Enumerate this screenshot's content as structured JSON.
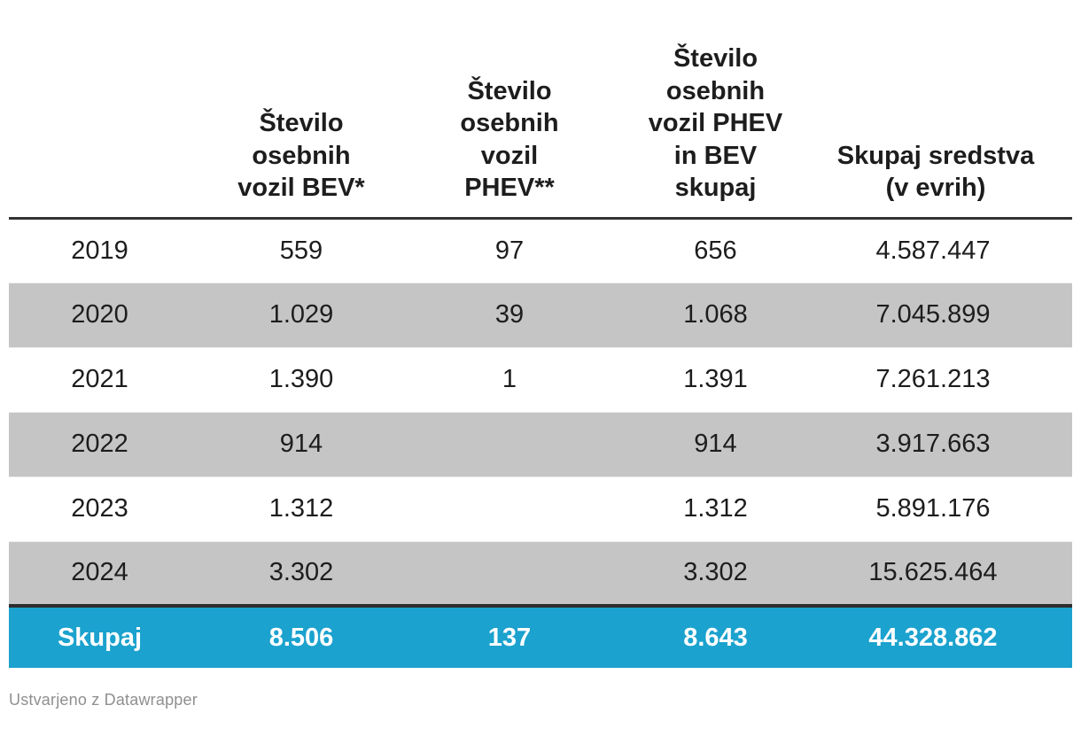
{
  "table": {
    "columns": [
      {
        "label": ""
      },
      {
        "label": "Število\nosebnih\nvozil BEV*"
      },
      {
        "label": "Število\nosebnih\nvozil\nPHEV**"
      },
      {
        "label": "Število\nosebnih\nvozil PHEV\nin BEV\nskupaj"
      },
      {
        "label": "Skupaj sredstva\n(v evrih)"
      }
    ],
    "rows": [
      {
        "year": "2019",
        "bev": "559",
        "phev": "97",
        "total": "656",
        "funds": "4.587.447"
      },
      {
        "year": "2020",
        "bev": "1.029",
        "phev": "39",
        "total": "1.068",
        "funds": "7.045.899"
      },
      {
        "year": "2021",
        "bev": "1.390",
        "phev": "1",
        "total": "1.391",
        "funds": "7.261.213"
      },
      {
        "year": "2022",
        "bev": "914",
        "phev": "",
        "total": "914",
        "funds": "3.917.663"
      },
      {
        "year": "2023",
        "bev": "1.312",
        "phev": "",
        "total": "1.312",
        "funds": "5.891.176"
      },
      {
        "year": "2024",
        "bev": "3.302",
        "phev": "",
        "total": "3.302",
        "funds": "15.625.464"
      }
    ],
    "total_row": {
      "label": "Skupaj",
      "bev": "8.506",
      "phev": "137",
      "total": "8.643",
      "funds": "44.328.862"
    }
  },
  "footer": {
    "attribution": "Ustvarjeno z Datawrapper"
  },
  "colors": {
    "accent_blue": "#1ba2ce",
    "stripe_gray": "#c5c5c5",
    "rule_dark": "#333333",
    "total_border_dark": "#2e2e2e",
    "text_dark": "#1d1d1d",
    "footer_gray": "#8f8f8f"
  },
  "chart_data": {
    "type": "table",
    "title": "",
    "columns": [
      "",
      "Število osebnih vozil BEV*",
      "Število osebnih vozil PHEV**",
      "Število osebnih vozil PHEV in BEV skupaj",
      "Skupaj sredstva (v evrih)"
    ],
    "rows": [
      [
        "2019",
        559,
        97,
        656,
        4587447
      ],
      [
        "2020",
        1029,
        39,
        1068,
        7045899
      ],
      [
        "2021",
        1390,
        1,
        1391,
        7261213
      ],
      [
        "2022",
        914,
        null,
        914,
        3917663
      ],
      [
        "2023",
        1312,
        null,
        1312,
        5891176
      ],
      [
        "2024",
        3302,
        null,
        3302,
        15625464
      ],
      [
        "Skupaj",
        8506,
        137,
        8643,
        44328862
      ]
    ],
    "layout_hints": {
      "striped_rows": [
        "2020",
        "2022",
        "2024"
      ],
      "total_row_highlight": "blue",
      "number_format": "dot thousands separator (sl-SI)"
    }
  }
}
